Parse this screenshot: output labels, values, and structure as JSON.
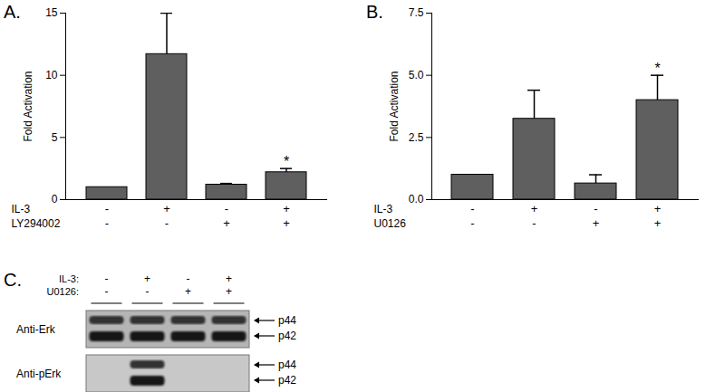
{
  "chart_data": [
    {
      "type": "bar",
      "title": "A.",
      "y_label": "Fold Activation",
      "categories": [
        null,
        null,
        null,
        null
      ],
      "values": [
        1,
        11.7,
        1.2,
        2.2
      ],
      "errors": [
        0,
        3.3,
        0.1,
        0.3
      ],
      "color": "#5f5f5f",
      "ylim": [
        0,
        15
      ],
      "yticks": [
        0,
        5,
        10,
        15
      ],
      "conditions": [
        {
          "name": "IL-3",
          "values": [
            "-",
            "+",
            "-",
            "+"
          ]
        },
        {
          "name": "LY294002",
          "values": [
            "-",
            "-",
            "+",
            "+"
          ]
        }
      ],
      "annotations": [
        {
          "index": 3,
          "text": "*"
        }
      ]
    },
    {
      "type": "bar",
      "title": "B.",
      "y_label": "Fold Activation",
      "categories": [
        null,
        null,
        null,
        null
      ],
      "values": [
        1,
        3.25,
        0.65,
        4.0
      ],
      "errors": [
        0,
        1.15,
        0.35,
        1.0
      ],
      "color": "#5f5f5f",
      "ylim": [
        0,
        7.5
      ],
      "yticks": [
        {
          "value": 0,
          "label": "0.0"
        },
        {
          "value": 2.5,
          "label": "2.5"
        },
        {
          "value": 5,
          "label": "5.0"
        },
        {
          "value": 7.5,
          "label": "7.5"
        }
      ],
      "conditions": [
        {
          "name": "IL-3",
          "values": [
            "-",
            "+",
            "-",
            "+"
          ]
        },
        {
          "name": "U0126",
          "values": [
            "-",
            "-",
            "+",
            "+"
          ]
        }
      ],
      "annotations": [
        {
          "index": 3,
          "text": "*"
        }
      ]
    }
  ],
  "panel_c": {
    "title": "C.",
    "conditions": [
      {
        "name": "IL-3:",
        "values": [
          "-",
          "+",
          "-",
          "+"
        ]
      },
      {
        "name": "U0126:",
        "values": [
          "-",
          "-",
          "+",
          "+"
        ]
      }
    ],
    "blots": [
      {
        "label": "Anti-Erk",
        "bands": [
          "p44",
          "p42"
        ],
        "signal": [
          true,
          true,
          true,
          true
        ]
      },
      {
        "label": "Anti-pErk",
        "bands": [
          "p44",
          "p42"
        ],
        "signal": [
          false,
          true,
          false,
          false
        ]
      }
    ]
  }
}
